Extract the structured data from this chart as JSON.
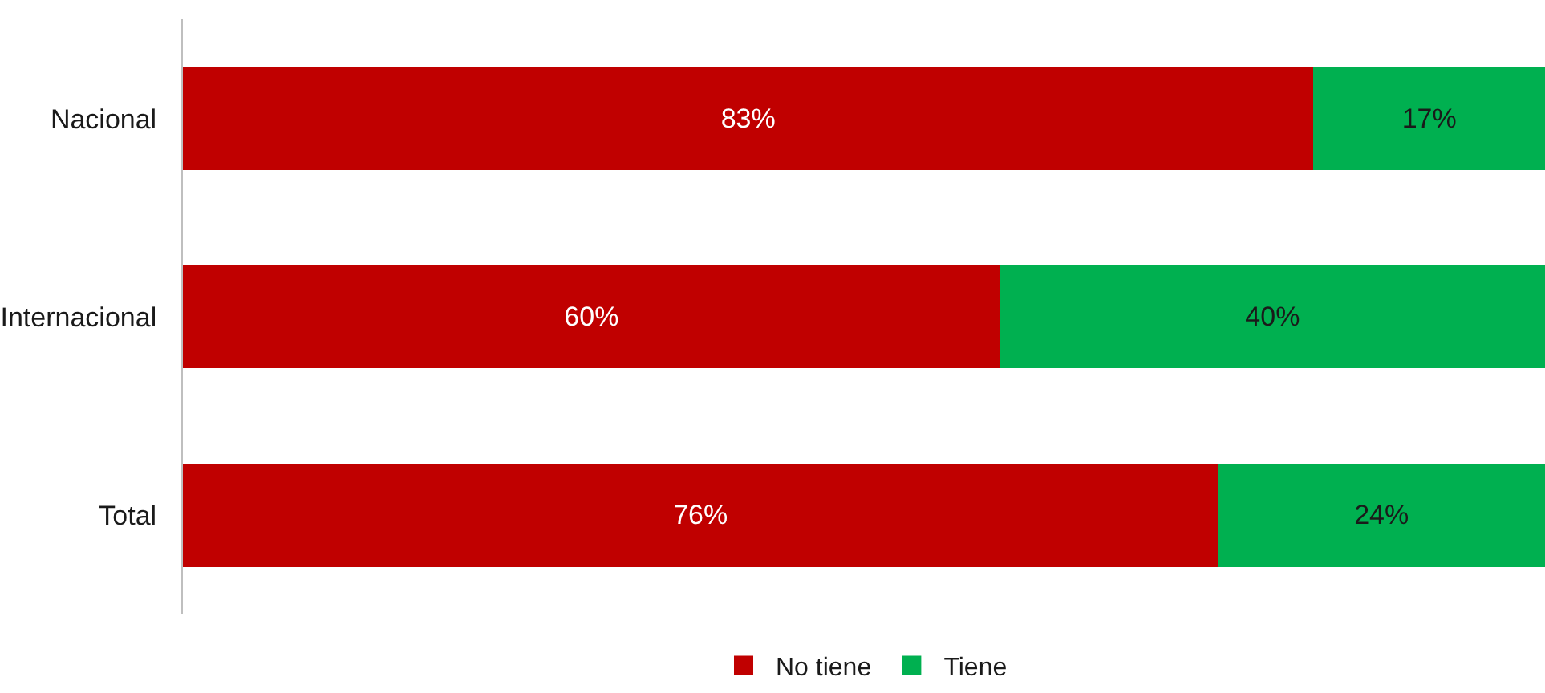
{
  "chart_data": {
    "type": "bar",
    "orientation": "horizontal",
    "stacked": true,
    "categories": [
      "Nacional",
      "Internacional",
      "Total"
    ],
    "series": [
      {
        "name": "No tiene",
        "color": "#c00000",
        "values": [
          83,
          60,
          76
        ],
        "value_labels": [
          "83%",
          "60%",
          "76%"
        ]
      },
      {
        "name": "Tiene",
        "color": "#00b050",
        "values": [
          17,
          40,
          24
        ],
        "value_labels": [
          "17%",
          "40%",
          "24%"
        ]
      }
    ],
    "tick_labels": "y",
    "legend": "bottom"
  }
}
